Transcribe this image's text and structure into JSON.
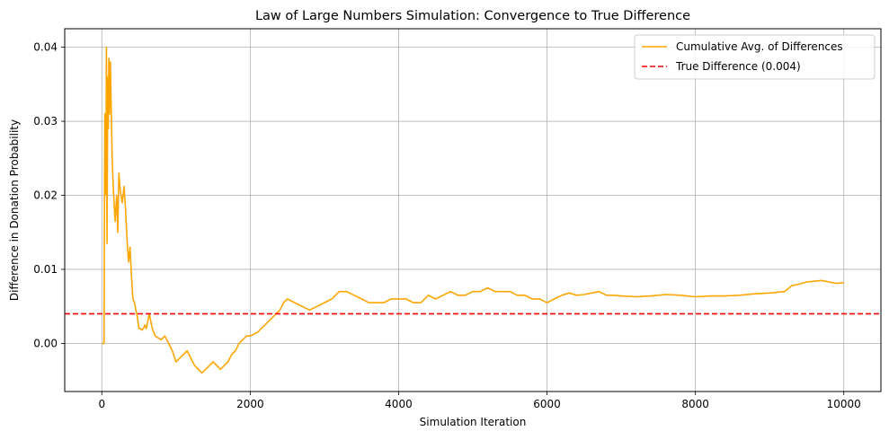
{
  "chart_data": {
    "type": "line",
    "title": "Law of Large Numbers Simulation: Convergence to True Difference",
    "xlabel": "Simulation Iteration",
    "ylabel": "Difference in Donation Probability",
    "xlim": [
      -500,
      10500
    ],
    "ylim": [
      -0.0065,
      0.0425
    ],
    "x_ticks": [
      0,
      2000,
      4000,
      6000,
      8000,
      10000
    ],
    "y_ticks": [
      0.0,
      0.01,
      0.02,
      0.03,
      0.04
    ],
    "x_tick_labels": [
      "0",
      "2000",
      "4000",
      "6000",
      "8000",
      "10000"
    ],
    "y_tick_labels": [
      "0.00",
      "0.01",
      "0.02",
      "0.03",
      "0.04"
    ],
    "grid": true,
    "legend_position": "top-right",
    "series": [
      {
        "name": "Cumulative Avg. of Differences",
        "color": "#FFA500",
        "style": "solid",
        "x": [
          1,
          30,
          40,
          55,
          62,
          70,
          80,
          88,
          95,
          105,
          115,
          125,
          140,
          150,
          165,
          180,
          200,
          215,
          230,
          245,
          260,
          275,
          300,
          320,
          340,
          360,
          380,
          400,
          420,
          440,
          460,
          480,
          500,
          520,
          540,
          560,
          580,
          600,
          640,
          680,
          720,
          800,
          850,
          900,
          950,
          1000,
          1050,
          1100,
          1150,
          1200,
          1250,
          1300,
          1350,
          1400,
          1450,
          1500,
          1550,
          1600,
          1650,
          1700,
          1750,
          1800,
          1850,
          1900,
          1950,
          2000,
          2100,
          2200,
          2300,
          2400,
          2450,
          2500,
          2600,
          2700,
          2800,
          2900,
          3000,
          3100,
          3200,
          3300,
          3400,
          3500,
          3600,
          3700,
          3800,
          3900,
          4000,
          4100,
          4200,
          4300,
          4400,
          4500,
          4600,
          4700,
          4800,
          4900,
          5000,
          5100,
          5200,
          5300,
          5400,
          5500,
          5600,
          5700,
          5800,
          5900,
          6000,
          6100,
          6200,
          6300,
          6400,
          6500,
          6600,
          6700,
          6800,
          6900,
          7000,
          7200,
          7400,
          7600,
          7800,
          8000,
          8200,
          8400,
          8600,
          8800,
          9000,
          9200,
          9300,
          9400,
          9500,
          9600,
          9700,
          9800,
          9900,
          10000
        ],
        "y": [
          0.0,
          0.0,
          0.031,
          0.02,
          0.04,
          0.0135,
          0.036,
          0.029,
          0.0385,
          0.031,
          0.038,
          0.0325,
          0.025,
          0.022,
          0.019,
          0.0165,
          0.02,
          0.015,
          0.023,
          0.021,
          0.02,
          0.019,
          0.0212,
          0.018,
          0.014,
          0.011,
          0.013,
          0.009,
          0.006,
          0.0055,
          0.0045,
          0.0035,
          0.002,
          0.002,
          0.0018,
          0.002,
          0.0025,
          0.002,
          0.004,
          0.002,
          0.001,
          0.0005,
          0.001,
          0.0,
          -0.001,
          -0.0025,
          -0.002,
          -0.0015,
          -0.001,
          -0.002,
          -0.003,
          -0.0035,
          -0.004,
          -0.0035,
          -0.003,
          -0.0025,
          -0.003,
          -0.0035,
          -0.003,
          -0.0025,
          -0.0015,
          -0.001,
          0.0,
          0.0005,
          0.001,
          0.001,
          0.0015,
          0.0025,
          0.0035,
          0.0045,
          0.0055,
          0.006,
          0.0055,
          0.005,
          0.0045,
          0.005,
          0.0055,
          0.006,
          0.007,
          0.007,
          0.0065,
          0.006,
          0.0055,
          0.0055,
          0.0055,
          0.006,
          0.006,
          0.006,
          0.0055,
          0.0055,
          0.0065,
          0.006,
          0.0065,
          0.007,
          0.0065,
          0.0065,
          0.007,
          0.007,
          0.0075,
          0.007,
          0.007,
          0.007,
          0.0065,
          0.0065,
          0.006,
          0.006,
          0.0055,
          0.006,
          0.0065,
          0.0068,
          0.0065,
          0.0066,
          0.0068,
          0.007,
          0.0065,
          0.0065,
          0.0064,
          0.0063,
          0.0064,
          0.0066,
          0.0065,
          0.0063,
          0.0064,
          0.0064,
          0.0065,
          0.0067,
          0.0068,
          0.007,
          0.0078,
          0.008,
          0.0083,
          0.0084,
          0.0085,
          0.0083,
          0.0081,
          0.0082
        ]
      }
    ],
    "reference_lines": [
      {
        "name": "True Difference (0.004)",
        "y": 0.004,
        "color": "#FF0000",
        "style": "dashed"
      }
    ]
  }
}
